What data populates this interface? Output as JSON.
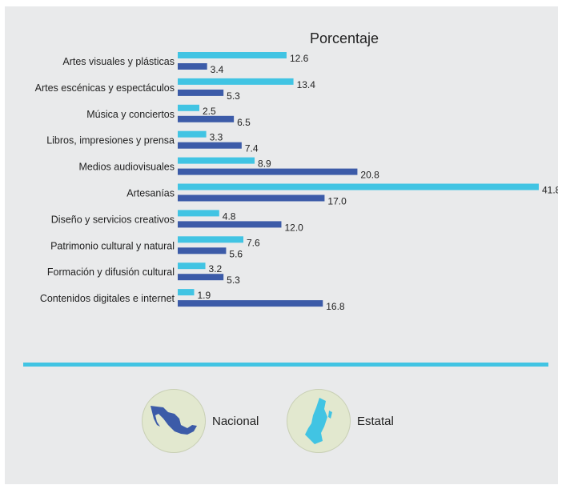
{
  "chart_data": {
    "type": "bar",
    "orientation": "horizontal",
    "title": "Porcentaje",
    "categories": [
      "Artes visuales y plásticas",
      "Artes escénicas y espectáculos",
      "Música y conciertos",
      "Libros, impresiones y prensa",
      "Medios audiovisuales",
      "Artesanías",
      "Diseño y servicios creativos",
      "Patrimonio cultural y natural",
      "Formación y difusión cultural",
      "Contenidos digitales e internet"
    ],
    "series": [
      {
        "name": "Estatal",
        "color": "#41c4e3",
        "values": [
          12.6,
          13.4,
          2.5,
          3.3,
          8.9,
          41.8,
          4.8,
          7.6,
          3.2,
          1.9
        ]
      },
      {
        "name": "Nacional",
        "color": "#3c5ba8",
        "values": [
          3.4,
          5.3,
          6.5,
          7.4,
          20.8,
          17.0,
          12.0,
          5.6,
          5.3,
          16.8
        ]
      }
    ],
    "xlim": [
      0,
      41.8
    ],
    "grid": false,
    "legend_position": "bottom"
  },
  "legend": {
    "nacional_label": "Nacional",
    "estatal_label": "Estatal",
    "nacional_icon": "mexico-map-icon",
    "estatal_icon": "state-map-icon"
  },
  "colors": {
    "background": "#e9eaeb",
    "divider": "#41c4e3"
  }
}
